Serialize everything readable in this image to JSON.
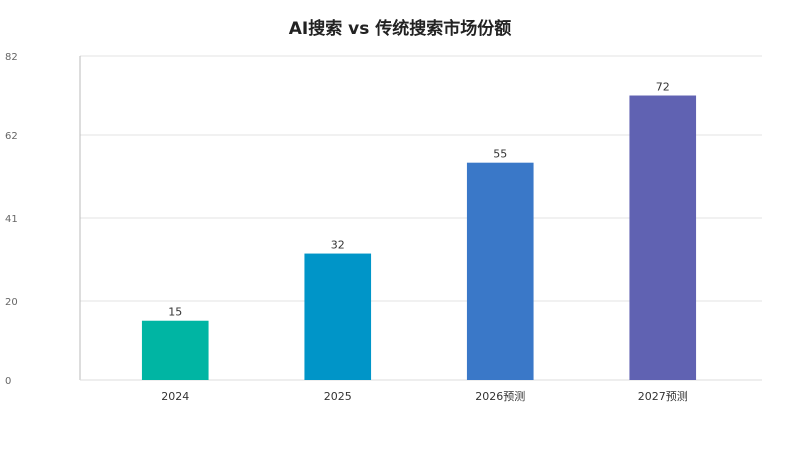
{
  "chart_data": {
    "type": "bar",
    "title": "AI搜索 vs 传统搜索市场份额",
    "xlabel": "",
    "ylabel": "",
    "categories": [
      "2024",
      "2025",
      "2026预测",
      "2027预测"
    ],
    "values": [
      15,
      32,
      55,
      72
    ],
    "data_labels": [
      "15",
      "32",
      "55",
      "72"
    ],
    "bar_colors": [
      "#00b5a3",
      "#0095c8",
      "#3a78c8",
      "#6062b2"
    ],
    "ylim": [
      0,
      82
    ],
    "yticks": [
      0,
      20,
      41,
      62,
      82
    ],
    "ytick_labels": [
      "0",
      "20",
      "41",
      "62",
      "82"
    ],
    "grid": true,
    "legend": "none"
  }
}
